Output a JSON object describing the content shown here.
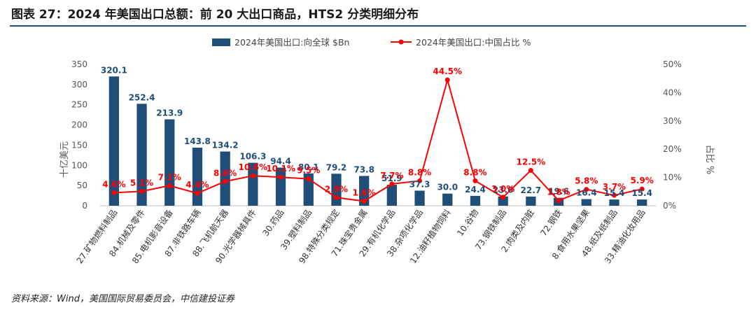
{
  "title": "图表 27：2024 年美国出口总额：前 20 大出口商品，HTS2 分类明细分布",
  "source": "资料来源：Wind，美国国际贸易委员会，中信建投证券",
  "chart_data": {
    "type": "bar",
    "categories": [
      "27.矿物燃料制品",
      "84.机械及零件",
      "85.电机影音设备",
      "87.非铁路车辆",
      "88.飞机航天器",
      "90.光学器械具件",
      "30.药品",
      "39.塑料制品",
      "98.特殊分类规定",
      "71.珠宝贵金属",
      "29.有机化学品",
      "38.杂项化学品",
      "12.油籽植物饲料",
      "10.谷物",
      "73.钢铁制品",
      "2.肉类及内脏",
      "72.钢铁",
      "8.食用水果坚果",
      "48.纸及纸制品",
      "33.精油化妆用品"
    ],
    "series": [
      {
        "name": "2024年美国出口:向全球 $Bn",
        "type": "bar",
        "axis": "left",
        "color": "#1f4e79",
        "values": [
          320.1,
          252.4,
          213.9,
          143.8,
          134.2,
          106.3,
          94.4,
          80.1,
          79.2,
          73.8,
          51.9,
          37.3,
          30.0,
          24.4,
          23.0,
          22.7,
          19.6,
          16.4,
          15.4,
          15.4
        ],
        "labels": [
          "320.1",
          "252.4",
          "213.9",
          "143.8",
          "134.2",
          "106.3",
          "94.4",
          "80.1",
          "79.2",
          "73.8",
          "51.9",
          "37.3",
          "30.0",
          "24.4",
          "23.0",
          "22.7",
          "19.6",
          "16.4",
          "15.4",
          "15.4"
        ]
      },
      {
        "name": "2024年美国出口:中国占比 %",
        "type": "line",
        "axis": "right",
        "color": "#ff0000",
        "values": [
          4.6,
          5.1,
          7.1,
          4.4,
          8.6,
          10.6,
          10.1,
          9.5,
          2.9,
          1.6,
          7.7,
          8.8,
          44.5,
          8.8,
          3.0,
          12.5,
          1.8,
          5.8,
          3.7,
          5.9
        ],
        "labels": [
          "4.6%",
          "5.1%",
          "7.1%",
          "4.4%",
          "8.6%",
          "10.6%",
          "10.1%",
          "9.5%",
          "2.9%",
          "1.6%",
          "7.7%",
          "8.8%",
          "44.5%",
          "8.8%",
          "3.0%",
          "12.5%",
          "1.8%",
          "5.8%",
          "3.7%",
          "5.9%"
        ]
      }
    ],
    "ylabel": "十亿美元",
    "y2label": "占比 %",
    "ylim": [
      0,
      350
    ],
    "yticks": [
      "0",
      "50",
      "100",
      "150",
      "200",
      "250",
      "300",
      "350"
    ],
    "y2lim": [
      0,
      50
    ],
    "y2ticks": [
      "0%",
      "10%",
      "20%",
      "30%",
      "40%",
      "50%"
    ],
    "legend_position": "top",
    "grid": false
  }
}
